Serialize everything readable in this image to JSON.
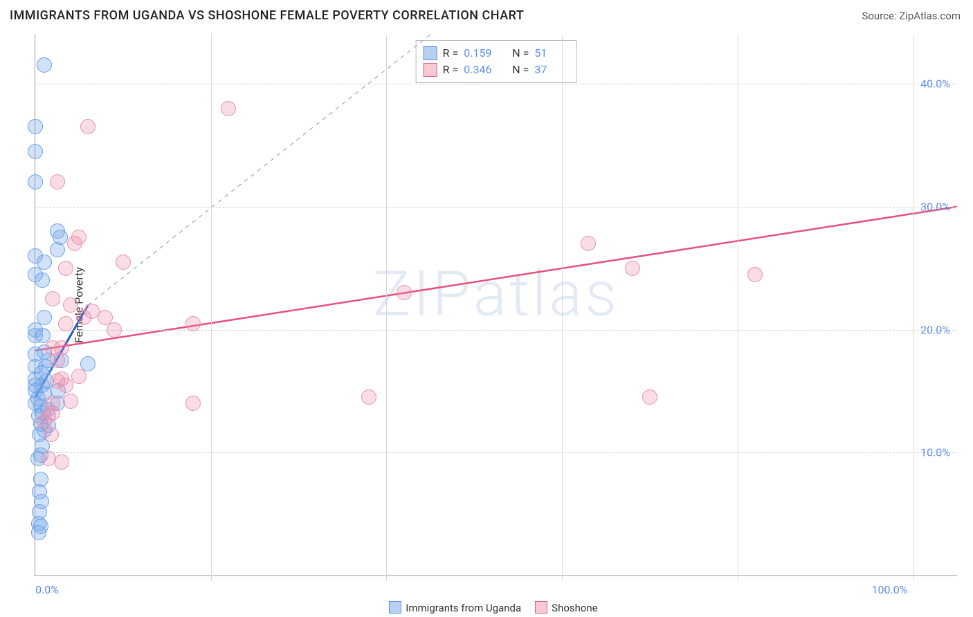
{
  "title": "IMMIGRANTS FROM UGANDA VS SHOSHONE FEMALE POVERTY CORRELATION CHART",
  "source": "Source: ZipAtlas.com",
  "watermark": "ZIPatlas",
  "axes": {
    "y_label": "Female Poverty",
    "xlim": [
      0,
      105
    ],
    "ylim": [
      0,
      44
    ],
    "x_ticks": [
      {
        "v": 0,
        "label": "0.0%"
      },
      {
        "v": 100,
        "label": "100.0%"
      }
    ],
    "x_grid": [
      20,
      40,
      60,
      80,
      100
    ],
    "y_ticks": [
      {
        "v": 10,
        "label": "10.0%"
      },
      {
        "v": 20,
        "label": "20.0%"
      },
      {
        "v": 30,
        "label": "30.0%"
      },
      {
        "v": 40,
        "label": "40.0%"
      }
    ],
    "grid_color": "#d0d0d0",
    "axis_color": "#999999",
    "tick_label_color": "#5b8def",
    "font_size": 16
  },
  "legend_bottom": [
    {
      "swatch_fill": "#b8d0f2",
      "swatch_border": "#5b8def",
      "label": "Immigrants from Uganda"
    },
    {
      "swatch_fill": "#f6c9d3",
      "swatch_border": "#e05a87",
      "label": "Shoshone"
    }
  ],
  "stats_box": {
    "rows": [
      {
        "swatch_fill": "#b8d0f2",
        "swatch_border": "#5b8def",
        "labels": [
          "R =",
          "N ="
        ],
        "values": [
          "0.159",
          "51"
        ]
      },
      {
        "swatch_fill": "#f6c9d3",
        "swatch_border": "#e05a87",
        "labels": [
          "R =",
          "N ="
        ],
        "values": [
          "0.346",
          "37"
        ]
      }
    ]
  },
  "series": [
    {
      "name": "Immigrants from Uganda",
      "marker_color_fill": "rgba(120,170,235,0.35)",
      "marker_color_stroke": "#6aa0e6",
      "marker_radius": 10,
      "trend": {
        "color": "#1f57c4",
        "width": 3,
        "x1": 0,
        "y1": 14.5,
        "x2": 6,
        "y2": 22.0,
        "dashed_extend_to_x": 45,
        "extend_y": 44
      },
      "points": [
        [
          0,
          14
        ],
        [
          0,
          15
        ],
        [
          0,
          15.5
        ],
        [
          0,
          16
        ],
        [
          0,
          17
        ],
        [
          0,
          18
        ],
        [
          0,
          19.5
        ],
        [
          0,
          20
        ],
        [
          0,
          24.5
        ],
        [
          0,
          26
        ],
        [
          0,
          32
        ],
        [
          0,
          34.5
        ],
        [
          0,
          36.5
        ],
        [
          1,
          41.5
        ],
        [
          0.4,
          3.5
        ],
        [
          0.4,
          4.2
        ],
        [
          0.6,
          4.0
        ],
        [
          0.5,
          5.2
        ],
        [
          0.7,
          6.0
        ],
        [
          0.5,
          6.8
        ],
        [
          0.6,
          7.8
        ],
        [
          0.3,
          9.5
        ],
        [
          0.6,
          9.8
        ],
        [
          0.8,
          10.5
        ],
        [
          0.5,
          11.5
        ],
        [
          1.0,
          11.8
        ],
        [
          0.6,
          12.3
        ],
        [
          1.5,
          12.2
        ],
        [
          0.4,
          13.0
        ],
        [
          0.6,
          13.8
        ],
        [
          0.9,
          13.2
        ],
        [
          1.4,
          13.5
        ],
        [
          0.3,
          14.4
        ],
        [
          1.0,
          14.8
        ],
        [
          0.8,
          15.5
        ],
        [
          1.3,
          15.8
        ],
        [
          2.5,
          14.0
        ],
        [
          2.6,
          15.0
        ],
        [
          0.7,
          16.5
        ],
        [
          1.2,
          17.0
        ],
        [
          1.5,
          17.5
        ],
        [
          3.0,
          17.5
        ],
        [
          1.0,
          18.2
        ],
        [
          6.0,
          17.2
        ],
        [
          0.9,
          19.5
        ],
        [
          1.0,
          21.0
        ],
        [
          0.8,
          24.0
        ],
        [
          1.0,
          25.5
        ],
        [
          2.5,
          26.5
        ],
        [
          2.8,
          27.5
        ],
        [
          2.5,
          28.0
        ]
      ]
    },
    {
      "name": "Shoshone",
      "marker_color_fill": "rgba(235,140,170,0.30)",
      "marker_color_stroke": "#e892ad",
      "marker_radius": 10,
      "trend": {
        "color": "#e84f7d",
        "width": 2.5,
        "x1": 0,
        "y1": 18.3,
        "x2": 105,
        "y2": 30.0
      },
      "points": [
        [
          1.0,
          12.5
        ],
        [
          1.5,
          13.0
        ],
        [
          2.0,
          13.2
        ],
        [
          1.8,
          11.5
        ],
        [
          1.5,
          9.5
        ],
        [
          3.0,
          9.2
        ],
        [
          2.0,
          14.0
        ],
        [
          2.5,
          15.8
        ],
        [
          3.0,
          16.0
        ],
        [
          3.5,
          15.5
        ],
        [
          5.0,
          16.2
        ],
        [
          4.0,
          14.2
        ],
        [
          2.5,
          17.5
        ],
        [
          2.0,
          18.5
        ],
        [
          3.0,
          18.5
        ],
        [
          3.5,
          20.5
        ],
        [
          5.5,
          21.0
        ],
        [
          4.0,
          22.0
        ],
        [
          2.0,
          22.5
        ],
        [
          3.5,
          25.0
        ],
        [
          4.5,
          27.0
        ],
        [
          5.0,
          27.5
        ],
        [
          2.5,
          32.0
        ],
        [
          6.5,
          21.5
        ],
        [
          8.0,
          21.0
        ],
        [
          10.0,
          25.5
        ],
        [
          9.0,
          20.0
        ],
        [
          18.0,
          20.5
        ],
        [
          18.0,
          14.0
        ],
        [
          38.0,
          14.5
        ],
        [
          22.0,
          38.0
        ],
        [
          6.0,
          36.5
        ],
        [
          42.0,
          23.0
        ],
        [
          63.0,
          27.0
        ],
        [
          68.0,
          25.0
        ],
        [
          70.0,
          14.5
        ],
        [
          82.0,
          24.5
        ]
      ]
    }
  ]
}
